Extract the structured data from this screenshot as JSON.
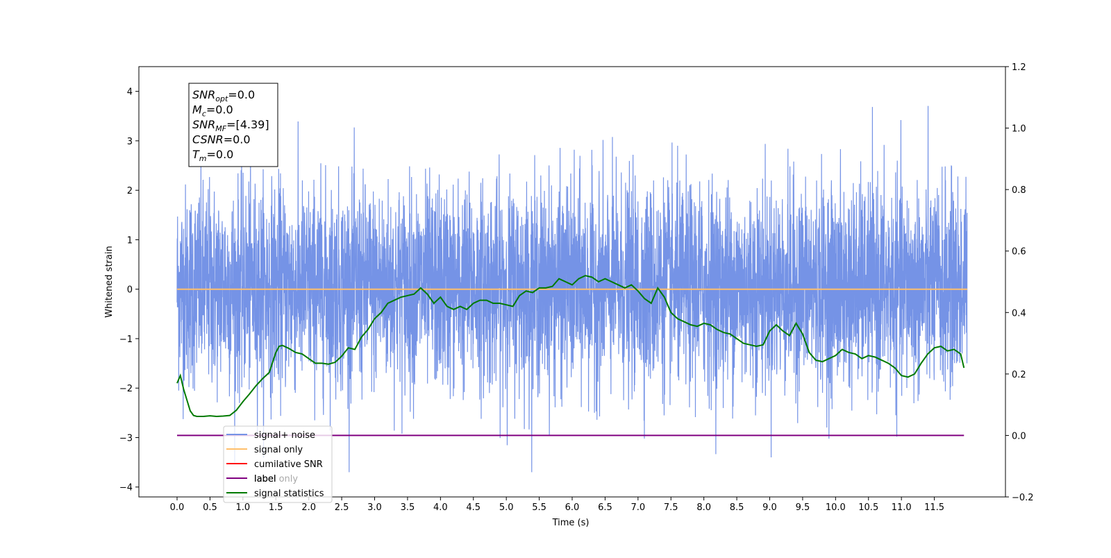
{
  "chart_data": {
    "type": "line",
    "xlabel": "Time (s)",
    "ylabel": "Whitened strain",
    "xlim": [
      -0.58,
      12.58
    ],
    "ylim": [
      -4.2,
      4.5
    ],
    "y2lim": [
      -0.2,
      1.2
    ],
    "x_ticks": [
      0.0,
      0.5,
      1.0,
      1.5,
      2.0,
      2.5,
      3.0,
      3.5,
      4.0,
      4.5,
      5.0,
      5.5,
      6.0,
      6.5,
      7.0,
      7.5,
      8.0,
      8.5,
      9.0,
      9.5,
      10.0,
      10.5,
      11.0,
      11.5
    ],
    "x_tick_labels": [
      "0.0",
      "0.5",
      "1.0",
      "1.5",
      "2.0",
      "2.5",
      "3.0",
      "3.5",
      "4.0",
      "4.5",
      "5.0",
      "5.5",
      "6.0",
      "6.5",
      "7.0",
      "7.5",
      "8.0",
      "8.5",
      "9.0",
      "9.5",
      "10.0",
      "10.5",
      "11.0",
      "11.5"
    ],
    "y_ticks": [
      4,
      3,
      2,
      1,
      0,
      -1,
      -2,
      -3,
      -4
    ],
    "y_tick_labels": [
      "4",
      "3",
      "2",
      "1",
      "0",
      "−1",
      "−2",
      "−3",
      "−4"
    ],
    "y2_ticks": [
      1.2,
      1.0,
      0.8,
      0.6,
      0.4,
      0.2,
      0.0,
      -0.2
    ],
    "y2_tick_labels": [
      "1.2",
      "1.0",
      "0.8",
      "0.6",
      "0.4",
      "0.2",
      "0.0",
      "−0.2"
    ],
    "grid": false,
    "legend_position": "bottom-left",
    "series": [
      {
        "name": "signal+ noise",
        "color": "#7593e6",
        "axis": "left",
        "kind": "noise",
        "x_range": [
          0.0,
          12.0
        ],
        "y_range": [
          -3.7,
          3.82
        ],
        "description_of_values": "dense random whitened strain noise, std ~1"
      },
      {
        "name": "signal only",
        "color": "#ffbf6b",
        "axis": "left",
        "x": [
          0.0,
          12.0
        ],
        "y": [
          0.0,
          0.0
        ]
      },
      {
        "name": "cumilative SNR",
        "color": "#ff0000",
        "axis": "right",
        "x": [],
        "y": []
      },
      {
        "name": "label",
        "color": "#800080",
        "axis": "right",
        "x": [
          0.0,
          11.95
        ],
        "y": [
          0.0,
          0.0
        ]
      },
      {
        "name": "label only",
        "color": "#888888",
        "axis": "right",
        "x": [],
        "y": []
      },
      {
        "name": "signal statistics",
        "color": "#007a00",
        "axis": "right",
        "x": [
          0.0,
          0.05,
          0.1,
          0.15,
          0.2,
          0.25,
          0.3,
          0.4,
          0.5,
          0.6,
          0.7,
          0.8,
          0.9,
          1.0,
          1.1,
          1.2,
          1.3,
          1.4,
          1.5,
          1.55,
          1.6,
          1.7,
          1.8,
          1.9,
          2.0,
          2.1,
          2.2,
          2.3,
          2.4,
          2.5,
          2.6,
          2.7,
          2.8,
          2.9,
          3.0,
          3.1,
          3.2,
          3.3,
          3.4,
          3.5,
          3.6,
          3.7,
          3.8,
          3.9,
          4.0,
          4.1,
          4.2,
          4.3,
          4.4,
          4.5,
          4.6,
          4.7,
          4.8,
          4.9,
          5.0,
          5.1,
          5.2,
          5.3,
          5.4,
          5.5,
          5.6,
          5.7,
          5.8,
          5.9,
          6.0,
          6.1,
          6.2,
          6.3,
          6.4,
          6.5,
          6.6,
          6.7,
          6.8,
          6.9,
          7.0,
          7.1,
          7.2,
          7.3,
          7.4,
          7.5,
          7.6,
          7.7,
          7.8,
          7.9,
          8.0,
          8.1,
          8.2,
          8.3,
          8.4,
          8.5,
          8.6,
          8.7,
          8.8,
          8.9,
          9.0,
          9.1,
          9.2,
          9.3,
          9.4,
          9.5,
          9.6,
          9.7,
          9.8,
          9.9,
          10.0,
          10.1,
          10.2,
          10.3,
          10.4,
          10.5,
          10.6,
          10.7,
          10.8,
          10.9,
          11.0,
          11.1,
          11.2,
          11.3,
          11.4,
          11.5,
          11.6,
          11.7,
          11.8,
          11.9,
          11.95
        ],
        "y": [
          0.17,
          0.195,
          0.15,
          0.115,
          0.08,
          0.065,
          0.062,
          0.062,
          0.064,
          0.062,
          0.063,
          0.065,
          0.082,
          0.11,
          0.135,
          0.162,
          0.185,
          0.205,
          0.27,
          0.29,
          0.293,
          0.283,
          0.27,
          0.265,
          0.25,
          0.235,
          0.235,
          0.232,
          0.238,
          0.258,
          0.285,
          0.28,
          0.32,
          0.345,
          0.38,
          0.4,
          0.43,
          0.44,
          0.45,
          0.455,
          0.46,
          0.48,
          0.46,
          0.43,
          0.45,
          0.42,
          0.41,
          0.42,
          0.41,
          0.43,
          0.44,
          0.44,
          0.43,
          0.43,
          0.425,
          0.42,
          0.455,
          0.47,
          0.465,
          0.48,
          0.48,
          0.485,
          0.51,
          0.5,
          0.49,
          0.51,
          0.52,
          0.515,
          0.5,
          0.51,
          0.5,
          0.49,
          0.48,
          0.49,
          0.47,
          0.445,
          0.43,
          0.48,
          0.45,
          0.4,
          0.38,
          0.37,
          0.36,
          0.355,
          0.365,
          0.36,
          0.345,
          0.335,
          0.33,
          0.315,
          0.3,
          0.295,
          0.29,
          0.295,
          0.34,
          0.36,
          0.34,
          0.325,
          0.365,
          0.33,
          0.27,
          0.245,
          0.24,
          0.25,
          0.26,
          0.28,
          0.27,
          0.265,
          0.25,
          0.26,
          0.255,
          0.245,
          0.235,
          0.22,
          0.195,
          0.19,
          0.2,
          0.235,
          0.265,
          0.285,
          0.29,
          0.275,
          0.28,
          0.265,
          0.22
        ]
      }
    ],
    "annotations": [
      {
        "label_main": "SNR",
        "label_sub": "opt",
        "value": "=0.0"
      },
      {
        "label_main": "M",
        "label_sub": "c",
        "value": "=0.0"
      },
      {
        "label_main": "SNR",
        "label_sub": "MF",
        "value": "=[4.39]"
      },
      {
        "label_main": "CSNR",
        "label_sub": "",
        "value": "=0.0"
      },
      {
        "label_main": "T",
        "label_sub": "m",
        "value": "=0.0"
      }
    ]
  }
}
